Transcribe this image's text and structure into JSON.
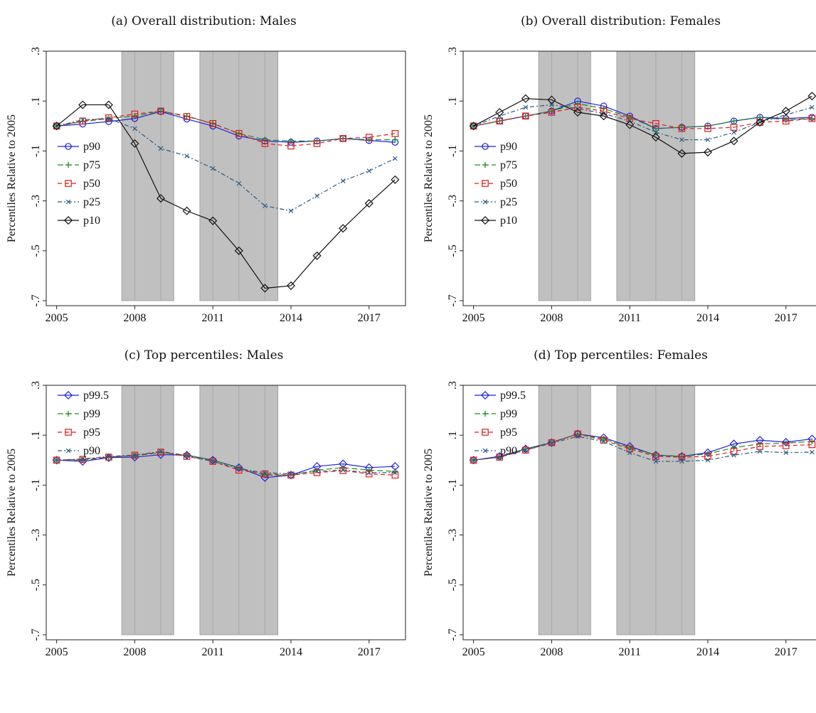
{
  "colors": {
    "recession_shade": "#c0c0c0",
    "recession_divider": "#a8a8a8",
    "p90": "#1f1fe0",
    "p75": "#1a8f1a",
    "p50": "#e01a1a",
    "p25": "#2a5a80",
    "p10": "#111111",
    "p99_5": "#1f1fe0",
    "p99": "#1a8f1a",
    "p95": "#e01a1a",
    "p90_top": "#2a5a80"
  },
  "chart_data": [
    {
      "id": "a",
      "title": "(a) Overall distribution: Males",
      "type": "line",
      "ylabel": "Percentiles Relative to 2005",
      "x": [
        2005,
        2006,
        2007,
        2008,
        2009,
        2010,
        2011,
        2012,
        2013,
        2014,
        2015,
        2016,
        2017,
        2018
      ],
      "xticks": [
        "2005",
        "2008",
        "2011",
        "2014",
        "2017"
      ],
      "yticks": [
        ".3",
        ".1",
        "-.1",
        "-.3",
        "-.5",
        "-.7"
      ],
      "ylim": [
        -0.72,
        0.3
      ],
      "xlim": [
        2004.6,
        2018.4
      ],
      "shaded": [
        [
          2007.5,
          2009.5
        ],
        [
          2010.5,
          2013.5
        ]
      ],
      "legend_position": "middle-left",
      "series": [
        {
          "name": "p90",
          "key": "p90",
          "marker": "circle",
          "dash": "",
          "values": [
            0.0,
            0.008,
            0.018,
            0.03,
            0.058,
            0.028,
            0.0,
            -0.04,
            -0.06,
            -0.065,
            -0.06,
            -0.05,
            -0.058,
            -0.065
          ]
        },
        {
          "name": "p75",
          "key": "p75",
          "marker": "plus",
          "dash": "8,4",
          "values": [
            0.0,
            0.018,
            0.03,
            0.04,
            0.06,
            0.04,
            0.01,
            -0.03,
            -0.055,
            -0.06,
            -0.06,
            -0.05,
            -0.055,
            -0.055
          ]
        },
        {
          "name": "p50",
          "key": "p50",
          "marker": "square",
          "dash": "6,4",
          "values": [
            0.0,
            0.02,
            0.033,
            0.048,
            0.06,
            0.038,
            0.01,
            -0.03,
            -0.07,
            -0.08,
            -0.07,
            -0.05,
            -0.045,
            -0.03
          ]
        },
        {
          "name": "p25",
          "key": "p25",
          "marker": "x",
          "dash": "6,3,2,3",
          "values": [
            0.0,
            0.025,
            0.03,
            -0.01,
            -0.09,
            -0.12,
            -0.17,
            -0.23,
            -0.32,
            -0.34,
            -0.28,
            -0.22,
            -0.18,
            -0.13
          ]
        },
        {
          "name": "p10",
          "key": "p10",
          "marker": "diamond",
          "dash": "",
          "values": [
            0.0,
            0.085,
            0.085,
            -0.07,
            -0.29,
            -0.34,
            -0.38,
            -0.5,
            -0.65,
            -0.64,
            -0.52,
            -0.41,
            -0.31,
            -0.215
          ]
        }
      ]
    },
    {
      "id": "b",
      "title": "(b) Overall distribution: Females",
      "type": "line",
      "ylabel": "Percentiles Relative to 2005",
      "x": [
        2005,
        2006,
        2007,
        2008,
        2009,
        2010,
        2011,
        2012,
        2013,
        2014,
        2015,
        2016,
        2017,
        2018
      ],
      "xticks": [
        "2005",
        "2008",
        "2011",
        "2014",
        "2017"
      ],
      "yticks": [
        ".3",
        ".1",
        "-.1",
        "-.3",
        "-.5",
        "-.7"
      ],
      "ylim": [
        -0.72,
        0.3
      ],
      "xlim": [
        2004.6,
        2018.4
      ],
      "shaded": [
        [
          2007.5,
          2009.5
        ],
        [
          2010.5,
          2013.5
        ]
      ],
      "legend_position": "middle-left",
      "series": [
        {
          "name": "p90",
          "key": "p90",
          "marker": "circle",
          "dash": "",
          "values": [
            0.0,
            0.02,
            0.04,
            0.06,
            0.1,
            0.08,
            0.04,
            -0.01,
            -0.005,
            0.0,
            0.02,
            0.035,
            0.03,
            0.035
          ]
        },
        {
          "name": "p75",
          "key": "p75",
          "marker": "plus",
          "dash": "8,4",
          "values": [
            0.0,
            0.02,
            0.04,
            0.06,
            0.09,
            0.07,
            0.035,
            -0.01,
            -0.005,
            0.0,
            0.02,
            0.035,
            0.025,
            0.03
          ]
        },
        {
          "name": "p50",
          "key": "p50",
          "marker": "square",
          "dash": "6,4",
          "values": [
            0.0,
            0.02,
            0.04,
            0.055,
            0.075,
            0.06,
            0.03,
            0.01,
            -0.01,
            -0.01,
            -0.005,
            0.015,
            0.02,
            0.03
          ]
        },
        {
          "name": "p25",
          "key": "p25",
          "marker": "x",
          "dash": "6,3,2,3",
          "values": [
            0.0,
            0.04,
            0.075,
            0.085,
            0.07,
            0.05,
            0.02,
            -0.025,
            -0.055,
            -0.055,
            -0.025,
            0.015,
            0.045,
            0.075
          ]
        },
        {
          "name": "p10",
          "key": "p10",
          "marker": "diamond",
          "dash": "",
          "values": [
            0.0,
            0.055,
            0.11,
            0.105,
            0.055,
            0.04,
            0.005,
            -0.045,
            -0.11,
            -0.105,
            -0.06,
            0.015,
            0.06,
            0.12
          ]
        }
      ]
    },
    {
      "id": "c",
      "title": "(c) Top percentiles: Males",
      "type": "line",
      "ylabel": "Percentiles Relative to 2005",
      "x": [
        2005,
        2006,
        2007,
        2008,
        2009,
        2010,
        2011,
        2012,
        2013,
        2014,
        2015,
        2016,
        2017,
        2018
      ],
      "xticks": [
        "2005",
        "2008",
        "2011",
        "2014",
        "2017"
      ],
      "yticks": [
        ".3",
        ".1",
        "-.1",
        "-.3",
        "-.5",
        "-.7"
      ],
      "ylim": [
        -0.72,
        0.3
      ],
      "xlim": [
        2004.6,
        2018.4
      ],
      "shaded": [
        [
          2007.5,
          2009.5
        ],
        [
          2010.5,
          2013.5
        ]
      ],
      "legend_position": "top-left",
      "series": [
        {
          "name": "p99.5",
          "key": "p99_5",
          "marker": "diamond",
          "dash": "",
          "values": [
            0.0,
            -0.005,
            0.01,
            0.012,
            0.022,
            0.02,
            0.0,
            -0.03,
            -0.07,
            -0.06,
            -0.025,
            -0.015,
            -0.03,
            -0.025
          ]
        },
        {
          "name": "p99",
          "key": "p99",
          "marker": "plus",
          "dash": "8,4",
          "values": [
            0.0,
            0.0,
            0.012,
            0.018,
            0.03,
            0.02,
            0.0,
            -0.03,
            -0.06,
            -0.06,
            -0.04,
            -0.03,
            -0.04,
            -0.045
          ]
        },
        {
          "name": "p95",
          "key": "p95",
          "marker": "square",
          "dash": "6,4",
          "values": [
            0.0,
            0.003,
            0.012,
            0.02,
            0.032,
            0.015,
            -0.005,
            -0.04,
            -0.055,
            -0.06,
            -0.05,
            -0.042,
            -0.055,
            -0.06
          ]
        },
        {
          "name": "p90",
          "key": "p90_top",
          "marker": "x",
          "dash": "6,3,2,3",
          "values": [
            0.0,
            0.005,
            0.015,
            0.02,
            0.035,
            0.018,
            -0.005,
            -0.035,
            -0.05,
            -0.055,
            -0.045,
            -0.04,
            -0.05,
            -0.05
          ]
        }
      ]
    },
    {
      "id": "d",
      "title": "(d) Top percentiles: Females",
      "type": "line",
      "ylabel": "Percentiles Relative to 2005",
      "x": [
        2005,
        2006,
        2007,
        2008,
        2009,
        2010,
        2011,
        2012,
        2013,
        2014,
        2015,
        2016,
        2017,
        2018
      ],
      "xticks": [
        "2005",
        "2008",
        "2011",
        "2014",
        "2017"
      ],
      "yticks": [
        ".3",
        ".1",
        "-.1",
        "-.3",
        "-.5",
        "-.7"
      ],
      "ylim": [
        -0.72,
        0.3
      ],
      "xlim": [
        2004.6,
        2018.4
      ],
      "shaded": [
        [
          2007.5,
          2009.5
        ],
        [
          2010.5,
          2013.5
        ]
      ],
      "legend_position": "top-left",
      "series": [
        {
          "name": "p99.5",
          "key": "p99_5",
          "marker": "diamond",
          "dash": "",
          "values": [
            0.0,
            0.015,
            0.045,
            0.07,
            0.105,
            0.09,
            0.055,
            0.02,
            0.015,
            0.03,
            0.065,
            0.08,
            0.072,
            0.085
          ]
        },
        {
          "name": "p99",
          "key": "p99",
          "marker": "plus",
          "dash": "8,4",
          "values": [
            0.0,
            0.012,
            0.045,
            0.072,
            0.105,
            0.085,
            0.05,
            0.02,
            0.015,
            0.025,
            0.05,
            0.065,
            0.068,
            0.075
          ]
        },
        {
          "name": "p95",
          "key": "p95",
          "marker": "square",
          "dash": "6,4",
          "values": [
            0.0,
            0.012,
            0.04,
            0.07,
            0.105,
            0.08,
            0.045,
            0.015,
            0.012,
            0.015,
            0.035,
            0.055,
            0.058,
            0.062
          ]
        },
        {
          "name": "p90",
          "key": "p90_top",
          "marker": "x",
          "dash": "6,3,2,3",
          "values": [
            0.0,
            0.012,
            0.04,
            0.068,
            0.095,
            0.075,
            0.03,
            -0.005,
            -0.005,
            0.0,
            0.02,
            0.035,
            0.03,
            0.032
          ]
        }
      ]
    }
  ]
}
